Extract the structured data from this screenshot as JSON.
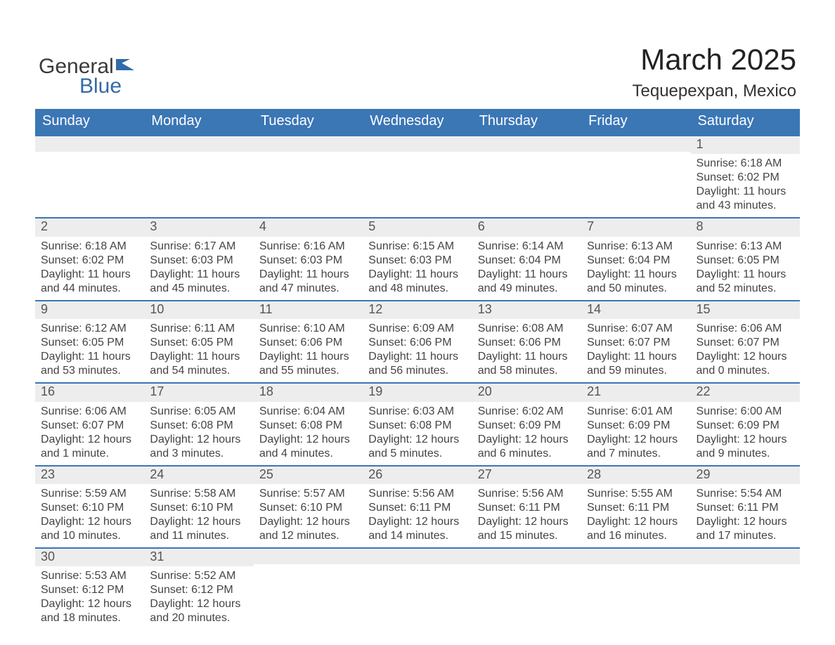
{
  "logo_general": "General",
  "logo_blue": "Blue",
  "month_title": "March 2025",
  "location": "Tequepexpan, Mexico",
  "colors": {
    "header_bg": "#3b76b5",
    "header_fg": "#ffffff",
    "daynum_bg": "#ededed",
    "text": "#444444",
    "rule": "#3b76b5"
  },
  "days_of_week": [
    "Sunday",
    "Monday",
    "Tuesday",
    "Wednesday",
    "Thursday",
    "Friday",
    "Saturday"
  ],
  "weeks": [
    [
      {
        "empty": true
      },
      {
        "empty": true
      },
      {
        "empty": true
      },
      {
        "empty": true
      },
      {
        "empty": true
      },
      {
        "empty": true
      },
      {
        "num": "1",
        "sunrise": "Sunrise: 6:18 AM",
        "sunset": "Sunset: 6:02 PM",
        "daylight": "Daylight: 11 hours and 43 minutes."
      }
    ],
    [
      {
        "num": "2",
        "sunrise": "Sunrise: 6:18 AM",
        "sunset": "Sunset: 6:02 PM",
        "daylight": "Daylight: 11 hours and 44 minutes."
      },
      {
        "num": "3",
        "sunrise": "Sunrise: 6:17 AM",
        "sunset": "Sunset: 6:03 PM",
        "daylight": "Daylight: 11 hours and 45 minutes."
      },
      {
        "num": "4",
        "sunrise": "Sunrise: 6:16 AM",
        "sunset": "Sunset: 6:03 PM",
        "daylight": "Daylight: 11 hours and 47 minutes."
      },
      {
        "num": "5",
        "sunrise": "Sunrise: 6:15 AM",
        "sunset": "Sunset: 6:03 PM",
        "daylight": "Daylight: 11 hours and 48 minutes."
      },
      {
        "num": "6",
        "sunrise": "Sunrise: 6:14 AM",
        "sunset": "Sunset: 6:04 PM",
        "daylight": "Daylight: 11 hours and 49 minutes."
      },
      {
        "num": "7",
        "sunrise": "Sunrise: 6:13 AM",
        "sunset": "Sunset: 6:04 PM",
        "daylight": "Daylight: 11 hours and 50 minutes."
      },
      {
        "num": "8",
        "sunrise": "Sunrise: 6:13 AM",
        "sunset": "Sunset: 6:05 PM",
        "daylight": "Daylight: 11 hours and 52 minutes."
      }
    ],
    [
      {
        "num": "9",
        "sunrise": "Sunrise: 6:12 AM",
        "sunset": "Sunset: 6:05 PM",
        "daylight": "Daylight: 11 hours and 53 minutes."
      },
      {
        "num": "10",
        "sunrise": "Sunrise: 6:11 AM",
        "sunset": "Sunset: 6:05 PM",
        "daylight": "Daylight: 11 hours and 54 minutes."
      },
      {
        "num": "11",
        "sunrise": "Sunrise: 6:10 AM",
        "sunset": "Sunset: 6:06 PM",
        "daylight": "Daylight: 11 hours and 55 minutes."
      },
      {
        "num": "12",
        "sunrise": "Sunrise: 6:09 AM",
        "sunset": "Sunset: 6:06 PM",
        "daylight": "Daylight: 11 hours and 56 minutes."
      },
      {
        "num": "13",
        "sunrise": "Sunrise: 6:08 AM",
        "sunset": "Sunset: 6:06 PM",
        "daylight": "Daylight: 11 hours and 58 minutes."
      },
      {
        "num": "14",
        "sunrise": "Sunrise: 6:07 AM",
        "sunset": "Sunset: 6:07 PM",
        "daylight": "Daylight: 11 hours and 59 minutes."
      },
      {
        "num": "15",
        "sunrise": "Sunrise: 6:06 AM",
        "sunset": "Sunset: 6:07 PM",
        "daylight": "Daylight: 12 hours and 0 minutes."
      }
    ],
    [
      {
        "num": "16",
        "sunrise": "Sunrise: 6:06 AM",
        "sunset": "Sunset: 6:07 PM",
        "daylight": "Daylight: 12 hours and 1 minute."
      },
      {
        "num": "17",
        "sunrise": "Sunrise: 6:05 AM",
        "sunset": "Sunset: 6:08 PM",
        "daylight": "Daylight: 12 hours and 3 minutes."
      },
      {
        "num": "18",
        "sunrise": "Sunrise: 6:04 AM",
        "sunset": "Sunset: 6:08 PM",
        "daylight": "Daylight: 12 hours and 4 minutes."
      },
      {
        "num": "19",
        "sunrise": "Sunrise: 6:03 AM",
        "sunset": "Sunset: 6:08 PM",
        "daylight": "Daylight: 12 hours and 5 minutes."
      },
      {
        "num": "20",
        "sunrise": "Sunrise: 6:02 AM",
        "sunset": "Sunset: 6:09 PM",
        "daylight": "Daylight: 12 hours and 6 minutes."
      },
      {
        "num": "21",
        "sunrise": "Sunrise: 6:01 AM",
        "sunset": "Sunset: 6:09 PM",
        "daylight": "Daylight: 12 hours and 7 minutes."
      },
      {
        "num": "22",
        "sunrise": "Sunrise: 6:00 AM",
        "sunset": "Sunset: 6:09 PM",
        "daylight": "Daylight: 12 hours and 9 minutes."
      }
    ],
    [
      {
        "num": "23",
        "sunrise": "Sunrise: 5:59 AM",
        "sunset": "Sunset: 6:10 PM",
        "daylight": "Daylight: 12 hours and 10 minutes."
      },
      {
        "num": "24",
        "sunrise": "Sunrise: 5:58 AM",
        "sunset": "Sunset: 6:10 PM",
        "daylight": "Daylight: 12 hours and 11 minutes."
      },
      {
        "num": "25",
        "sunrise": "Sunrise: 5:57 AM",
        "sunset": "Sunset: 6:10 PM",
        "daylight": "Daylight: 12 hours and 12 minutes."
      },
      {
        "num": "26",
        "sunrise": "Sunrise: 5:56 AM",
        "sunset": "Sunset: 6:11 PM",
        "daylight": "Daylight: 12 hours and 14 minutes."
      },
      {
        "num": "27",
        "sunrise": "Sunrise: 5:56 AM",
        "sunset": "Sunset: 6:11 PM",
        "daylight": "Daylight: 12 hours and 15 minutes."
      },
      {
        "num": "28",
        "sunrise": "Sunrise: 5:55 AM",
        "sunset": "Sunset: 6:11 PM",
        "daylight": "Daylight: 12 hours and 16 minutes."
      },
      {
        "num": "29",
        "sunrise": "Sunrise: 5:54 AM",
        "sunset": "Sunset: 6:11 PM",
        "daylight": "Daylight: 12 hours and 17 minutes."
      }
    ],
    [
      {
        "num": "30",
        "sunrise": "Sunrise: 5:53 AM",
        "sunset": "Sunset: 6:12 PM",
        "daylight": "Daylight: 12 hours and 18 minutes."
      },
      {
        "num": "31",
        "sunrise": "Sunrise: 5:52 AM",
        "sunset": "Sunset: 6:12 PM",
        "daylight": "Daylight: 12 hours and 20 minutes."
      },
      {
        "empty": true,
        "noband": true
      },
      {
        "empty": true,
        "noband": true
      },
      {
        "empty": true,
        "noband": true
      },
      {
        "empty": true,
        "noband": true
      },
      {
        "empty": true,
        "noband": true
      }
    ]
  ]
}
